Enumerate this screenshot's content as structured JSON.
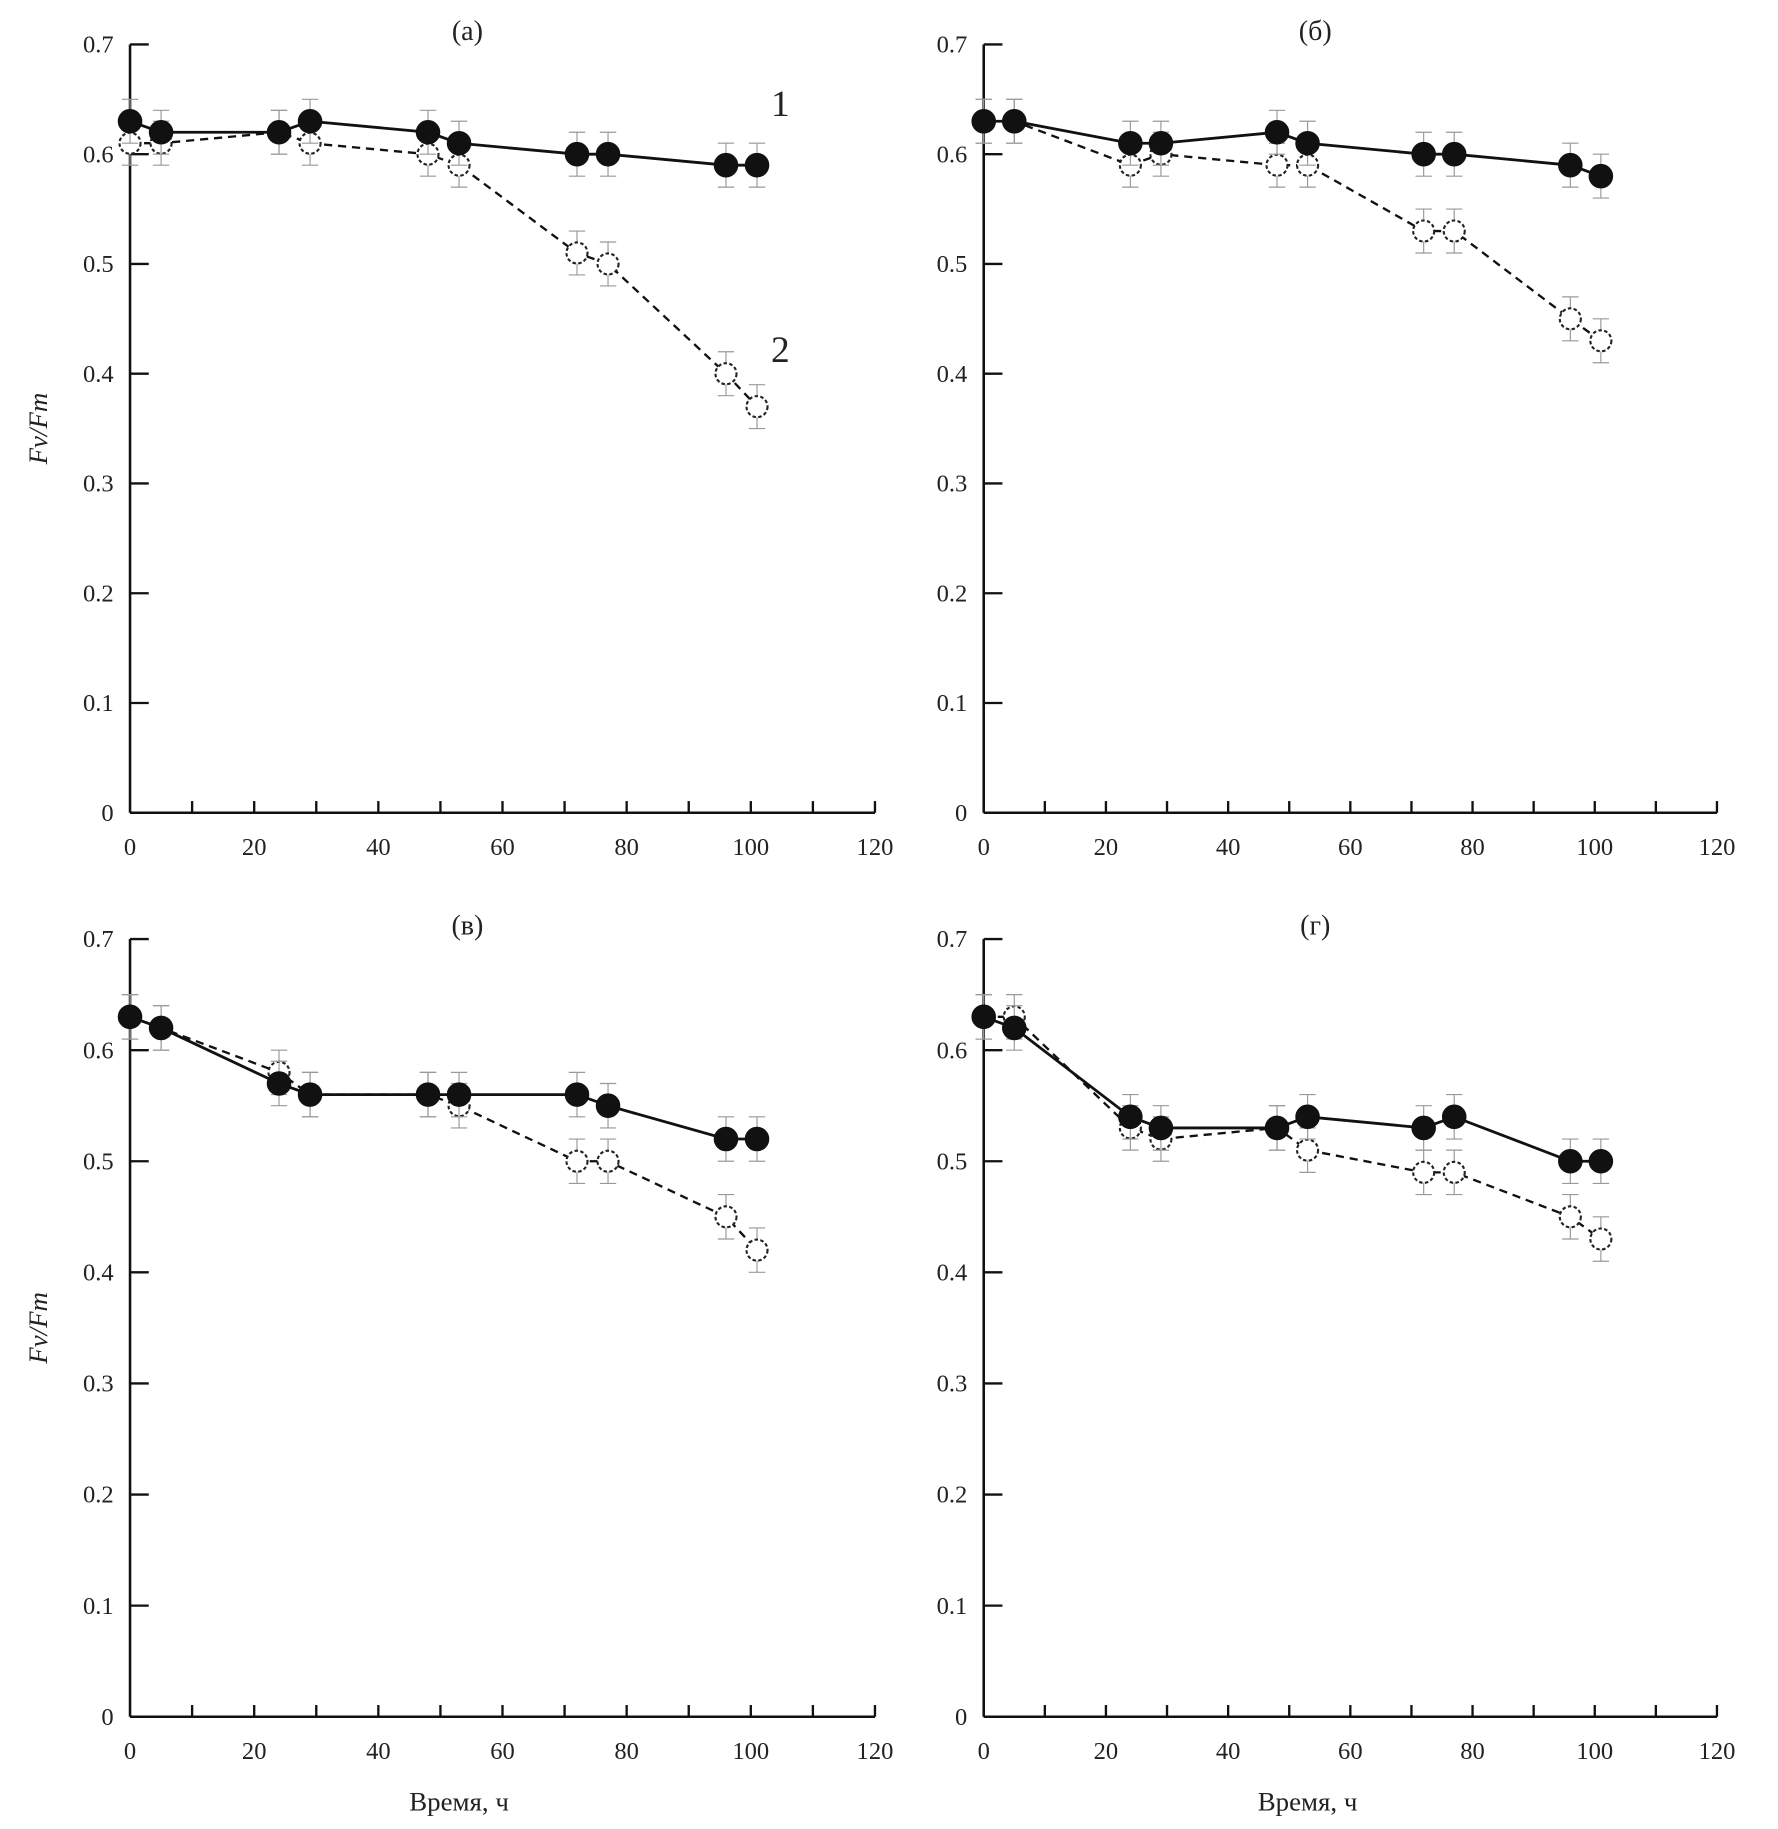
{
  "chart_data": [
    {
      "type": "line",
      "title": "(a)",
      "xlabel": "",
      "ylabel": "Fv/Fm",
      "xlim": [
        0,
        120
      ],
      "ylim": [
        0,
        0.7
      ],
      "xticks": [
        "0",
        "20",
        "40",
        "60",
        "80",
        "100",
        "120"
      ],
      "yticks": [
        "0",
        "0.1",
        "0.2",
        "0.3",
        "0.4",
        "0.5",
        "0.6",
        "0.7"
      ],
      "x": [
        0,
        5,
        24,
        29,
        48,
        53,
        72,
        77,
        96,
        101
      ],
      "annotations": [
        {
          "text": "1",
          "series": 0
        },
        {
          "text": "2",
          "series": 1
        }
      ],
      "series": [
        {
          "name": "1",
          "marker": "filled-circle",
          "line": "solid",
          "values": [
            0.63,
            0.62,
            0.62,
            0.63,
            0.62,
            0.61,
            0.6,
            0.6,
            0.59,
            0.59
          ],
          "error": 0.02
        },
        {
          "name": "2",
          "marker": "open-circle",
          "line": "dashed",
          "values": [
            0.61,
            0.61,
            0.62,
            0.61,
            0.6,
            0.59,
            0.51,
            0.5,
            0.4,
            0.37
          ],
          "error": 0.02
        }
      ]
    },
    {
      "type": "line",
      "title": "(б)",
      "xlabel": "",
      "ylabel": "",
      "xlim": [
        0,
        120
      ],
      "ylim": [
        0,
        0.7
      ],
      "xticks": [
        "0",
        "20",
        "40",
        "60",
        "80",
        "100",
        "120"
      ],
      "yticks": [
        "0",
        "0.1",
        "0.2",
        "0.3",
        "0.4",
        "0.5",
        "0.6",
        "0.7"
      ],
      "x": [
        0,
        5,
        24,
        29,
        48,
        53,
        72,
        77,
        96,
        101
      ],
      "series": [
        {
          "marker": "filled-circle",
          "line": "solid",
          "values": [
            0.63,
            0.63,
            0.61,
            0.61,
            0.62,
            0.61,
            0.6,
            0.6,
            0.59,
            0.58
          ],
          "error": 0.02
        },
        {
          "marker": "open-circle",
          "line": "dashed",
          "values": [
            0.63,
            0.63,
            0.59,
            0.6,
            0.59,
            0.59,
            0.53,
            0.53,
            0.45,
            0.43
          ],
          "error": 0.02
        }
      ]
    },
    {
      "type": "line",
      "title": "(в)",
      "xlabel": "Время, ч",
      "ylabel": "Fv/Fm",
      "xlim": [
        0,
        120
      ],
      "ylim": [
        0,
        0.7
      ],
      "xticks": [
        "0",
        "20",
        "40",
        "60",
        "80",
        "100",
        "120"
      ],
      "yticks": [
        "0",
        "0.1",
        "0.2",
        "0.3",
        "0.4",
        "0.5",
        "0.6",
        "0.7"
      ],
      "x": [
        0,
        5,
        24,
        29,
        48,
        53,
        72,
        77,
        96,
        101
      ],
      "series": [
        {
          "marker": "filled-circle",
          "line": "solid",
          "values": [
            0.63,
            0.62,
            0.57,
            0.56,
            0.56,
            0.56,
            0.56,
            0.55,
            0.52,
            0.52
          ],
          "error": 0.02
        },
        {
          "marker": "open-circle",
          "line": "dashed",
          "values": [
            0.63,
            0.62,
            0.58,
            0.56,
            0.56,
            0.55,
            0.5,
            0.5,
            0.45,
            0.42
          ],
          "error": 0.02
        }
      ]
    },
    {
      "type": "line",
      "title": "(г)",
      "xlabel": "Время, ч",
      "ylabel": "",
      "xlim": [
        0,
        120
      ],
      "ylim": [
        0,
        0.7
      ],
      "xticks": [
        "0",
        "20",
        "40",
        "60",
        "80",
        "100",
        "120"
      ],
      "yticks": [
        "0",
        "0.1",
        "0.2",
        "0.3",
        "0.4",
        "0.5",
        "0.6",
        "0.7"
      ],
      "x": [
        0,
        5,
        24,
        29,
        48,
        53,
        72,
        77,
        96,
        101
      ],
      "series": [
        {
          "marker": "filled-circle",
          "line": "solid",
          "values": [
            0.63,
            0.62,
            0.54,
            0.53,
            0.53,
            0.54,
            0.53,
            0.54,
            0.5,
            0.5
          ],
          "error": 0.02
        },
        {
          "marker": "open-circle",
          "line": "dashed",
          "values": [
            0.63,
            0.63,
            0.53,
            0.52,
            0.53,
            0.51,
            0.49,
            0.49,
            0.45,
            0.43
          ],
          "error": 0.02
        }
      ]
    }
  ]
}
